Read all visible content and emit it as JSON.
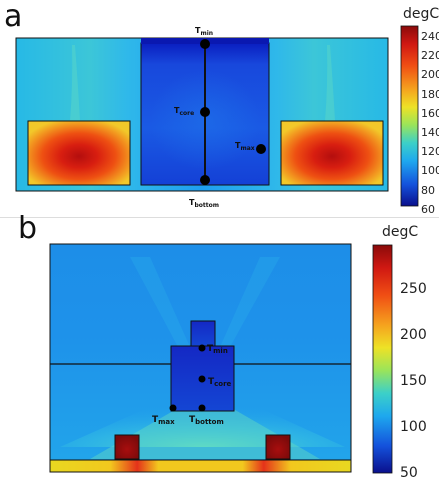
{
  "panel_a": {
    "label": "a",
    "colorbar": {
      "unit": "degC",
      "ticks": [
        "240",
        "220",
        "200",
        "180",
        "160",
        "140",
        "120",
        "100",
        "80",
        "60"
      ]
    },
    "points": {
      "t_min": {
        "main": "T",
        "sub": "min"
      },
      "t_core": {
        "main": "T",
        "sub": "core"
      },
      "t_max": {
        "main": "T",
        "sub": "max"
      },
      "t_bottom": {
        "main": "T",
        "sub": "bottom"
      }
    }
  },
  "panel_b": {
    "label": "b",
    "colorbar": {
      "unit": "degC",
      "ticks": [
        "250",
        "200",
        "150",
        "100",
        "50"
      ]
    },
    "points": {
      "t_min": {
        "main": "T",
        "sub": "min"
      },
      "t_core": {
        "main": "T",
        "sub": "core"
      },
      "t_max": {
        "main": "T",
        "sub": "max"
      },
      "t_bottom": {
        "main": "T",
        "sub": "bottom"
      }
    }
  },
  "colors": {
    "background_field": "#21b6ec",
    "cold": "#1028c8",
    "hot": "#c81a10",
    "strip": "#f2d820"
  }
}
